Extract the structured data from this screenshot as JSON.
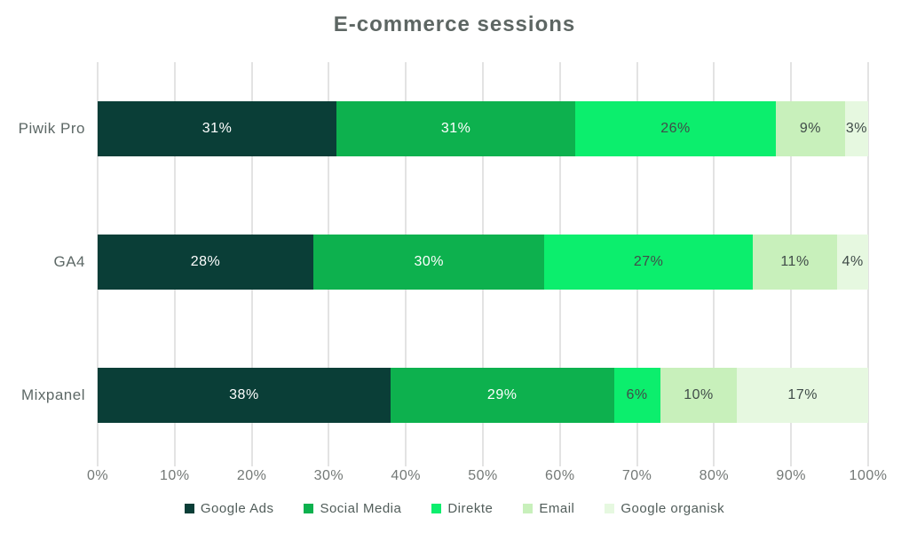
{
  "title": "E-commerce sessions",
  "colors": {
    "background": "#ffffff",
    "gridline": "#e3e3e3",
    "title_text": "#5d6663",
    "category_text": "#5d6866",
    "tick_text": "#737876",
    "legend_text": "#515d5a",
    "label_on_dark": "#ffffff",
    "label_on_light": "#404c49"
  },
  "chart_data": {
    "type": "bar",
    "orientation": "horizontal",
    "stacked": true,
    "title": "E-commerce sessions",
    "categories": [
      "Piwik Pro",
      "GA4",
      "Mixpanel"
    ],
    "series": [
      {
        "name": "Google Ads",
        "color": "#0a3e37",
        "label_color": "#ffffff",
        "values": [
          31,
          28,
          38
        ]
      },
      {
        "name": "Social Media",
        "color": "#0db14e",
        "label_color": "#ffffff",
        "values": [
          31,
          30,
          29
        ]
      },
      {
        "name": "Direkte",
        "color": "#0cee6d",
        "label_color": "#404c49",
        "values": [
          26,
          27,
          6
        ]
      },
      {
        "name": "Email",
        "color": "#c8f0bb",
        "label_color": "#404c49",
        "values": [
          9,
          11,
          10
        ]
      },
      {
        "name": "Google organisk",
        "color": "#e6f8e0",
        "label_color": "#404c49",
        "values": [
          3,
          4,
          17
        ]
      }
    ],
    "value_suffix": "%",
    "xlim": [
      0,
      100
    ],
    "x_ticks": [
      "0%",
      "10%",
      "20%",
      "30%",
      "40%",
      "50%",
      "60%",
      "70%",
      "80%",
      "90%",
      "100%"
    ],
    "grid": "vertical",
    "legend_position": "bottom"
  }
}
